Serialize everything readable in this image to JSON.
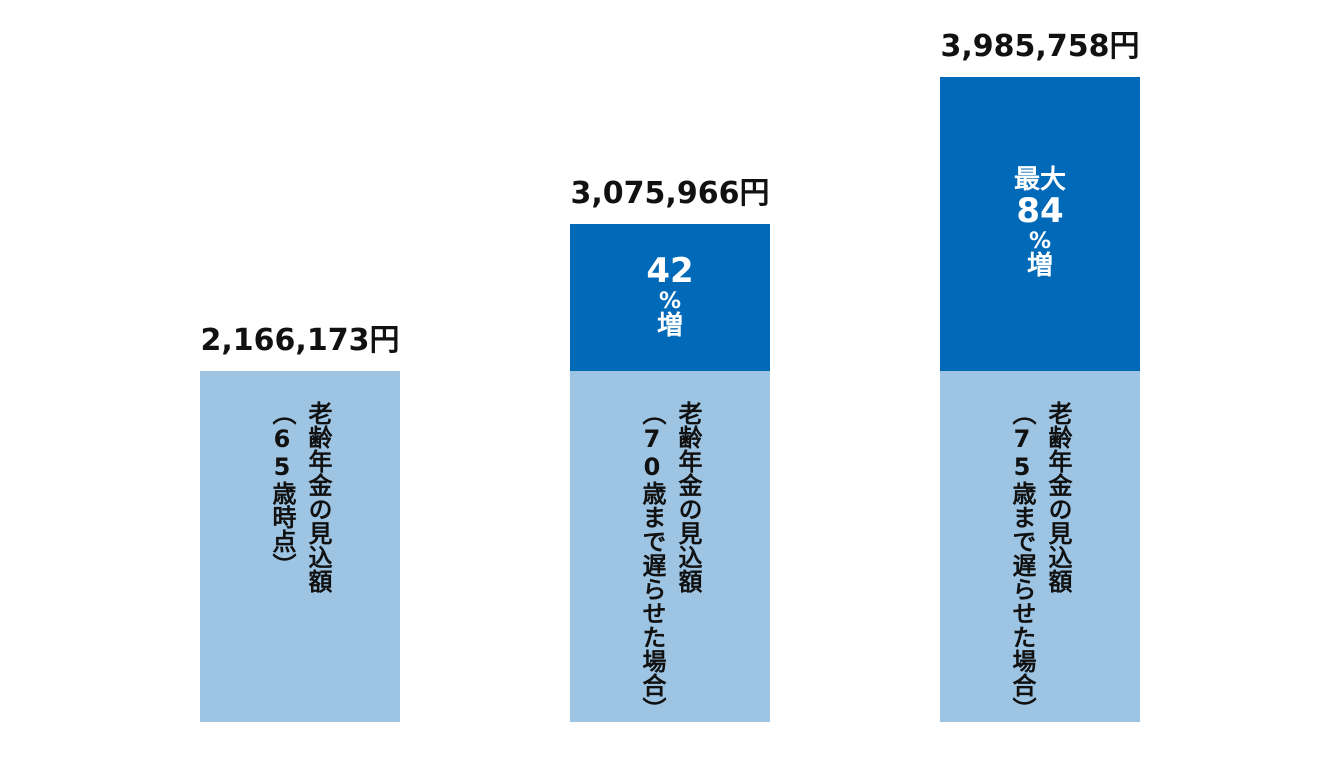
{
  "chart_data": {
    "type": "bar",
    "stacked": true,
    "title": "",
    "categories": [
      "65",
      "70",
      "75"
    ],
    "bars": [
      {
        "total_label": "2,166,173円",
        "total": 2166173,
        "base": 2166173,
        "base_label_lines": [
          "老齢年金の見込額",
          "（65歳時点）"
        ],
        "increase": 0,
        "increase_label_lines": []
      },
      {
        "total_label": "3,075,966円",
        "total": 3075966,
        "base": 2166173,
        "base_label_lines": [
          "老齢年金の見込額",
          "（70歳まで遅らせた場合）"
        ],
        "increase": 909793,
        "increase_label_lines": [
          "42",
          "%",
          "増"
        ]
      },
      {
        "total_label": "3,985,758円",
        "total": 3985758,
        "base": 2166173,
        "base_label_lines": [
          "老齢年金の見込額",
          "（75歳まで遅らせた場合）"
        ],
        "increase": 1819585,
        "increase_label_lines": [
          "最大",
          "84",
          "%",
          "増"
        ]
      }
    ],
    "colors": {
      "base": "#9dc5e3",
      "increase": "#006ab8",
      "label_dark": "#111111",
      "label_light": "#ffffff"
    },
    "grid": false,
    "legend": "none"
  }
}
